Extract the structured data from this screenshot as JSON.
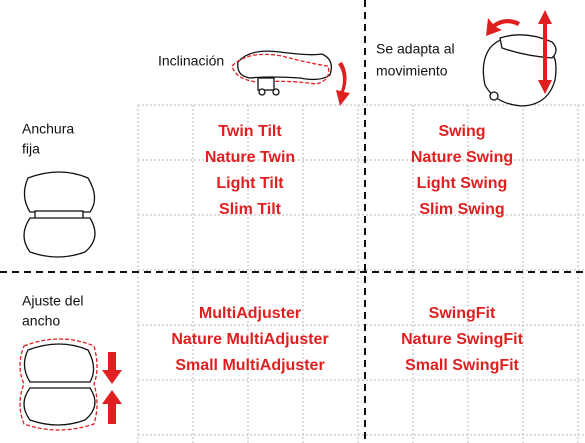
{
  "columns": [
    {
      "label": [
        "Inclinación"
      ]
    },
    {
      "label": [
        "Se adapta al",
        "movimiento"
      ]
    }
  ],
  "rows": [
    {
      "label": [
        "Anchura",
        "fija"
      ],
      "cells": [
        [
          "Twin Tilt",
          "Nature Twin",
          "Light Tilt",
          "Slim Tilt"
        ],
        [
          "Swing",
          "Nature Swing",
          "Light Swing",
          "Slim Swing"
        ]
      ]
    },
    {
      "label": [
        "Ajuste del",
        "ancho"
      ],
      "cells": [
        [
          "MultiAdjuster",
          "Nature MultiAdjuster",
          "Small MultiAdjuster"
        ],
        [
          "SwingFit",
          "Nature SwingFit",
          "Small SwingFit"
        ]
      ]
    }
  ]
}
